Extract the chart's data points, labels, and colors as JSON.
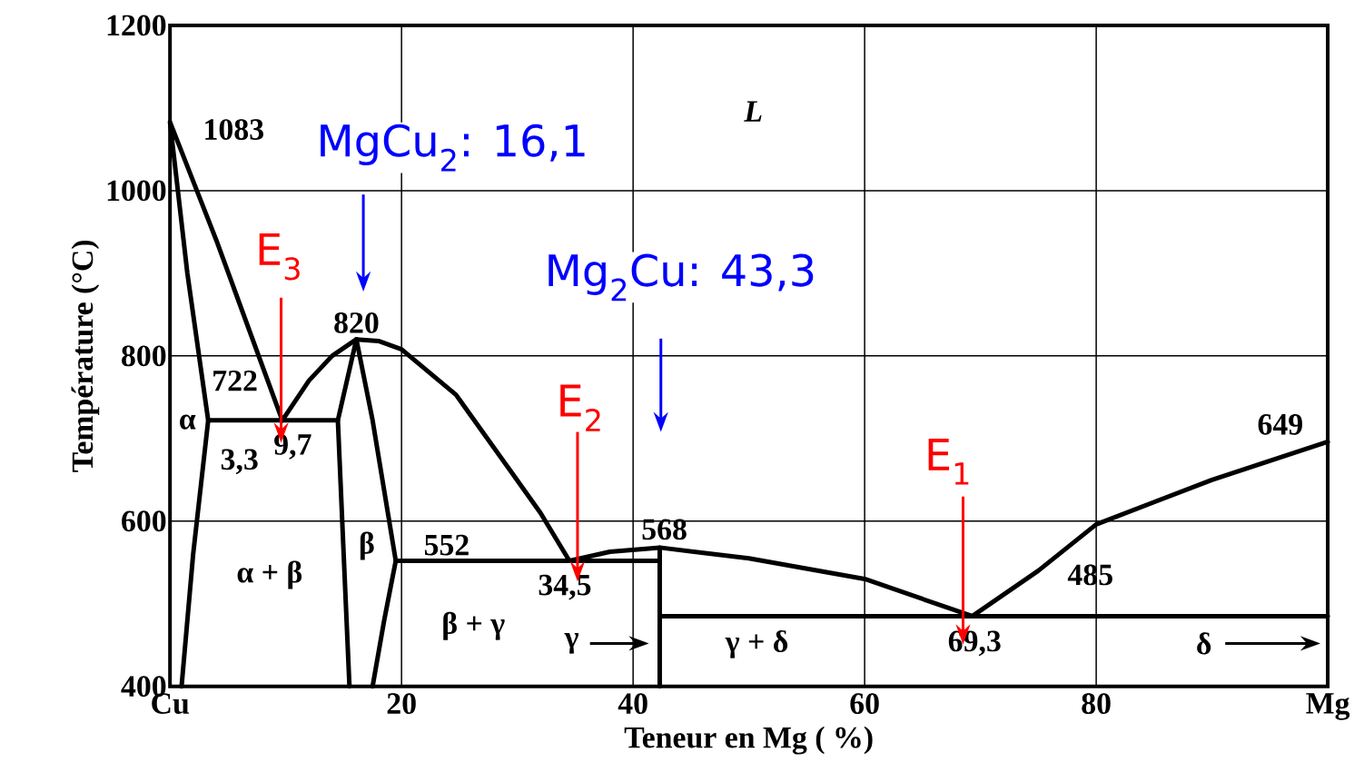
{
  "chart_data": {
    "type": "line",
    "xlabel": "Teneur en Mg ( %)",
    "ylabel": "Température (°C)",
    "xlim": [
      0,
      100
    ],
    "ylim": [
      400,
      1200
    ],
    "xticks": [
      {
        "value": 0,
        "label": "Cu"
      },
      20,
      40,
      60,
      80,
      {
        "value": 100,
        "label": "Mg"
      }
    ],
    "yticks": [
      400,
      600,
      800,
      1000,
      1200
    ],
    "grid": true,
    "marker": "none",
    "line_style": "solid",
    "series": [
      {
        "color": "#000000",
        "x": [
          9.7,
          4,
          0,
          1.5,
          3.3,
          2,
          1
        ],
        "values": [
          722,
          940,
          1083,
          900,
          722,
          560,
          400
        ]
      },
      {
        "color": "#000000",
        "x": [
          9.7,
          12,
          14,
          16.1,
          18,
          20,
          24.7,
          29.4,
          32,
          34.5
        ],
        "values": [
          722,
          770,
          800,
          820,
          818,
          808,
          753,
          661,
          610,
          552
        ]
      },
      {
        "color": "#000000",
        "x": [
          34.5,
          38,
          42.3,
          50,
          60,
          69.3
        ],
        "values": [
          552,
          563,
          568,
          555,
          530,
          485
        ]
      },
      {
        "color": "#000000",
        "x": [
          69.3,
          75,
          80,
          90,
          100
        ],
        "values": [
          485,
          540,
          596,
          650,
          696
        ]
      },
      {
        "color": "#000000",
        "x": [
          3.3,
          14.5
        ],
        "values": [
          722,
          722
        ]
      },
      {
        "color": "#000000",
        "x": [
          16.1,
          14.5,
          15,
          15.5
        ],
        "values": [
          820,
          722,
          560,
          400
        ]
      },
      {
        "color": "#000000",
        "x": [
          16.1,
          17.5,
          19.5,
          18.5,
          17.5
        ],
        "values": [
          820,
          722,
          552,
          480,
          400
        ]
      },
      {
        "color": "#000000",
        "x": [
          19.5,
          42.3
        ],
        "values": [
          552,
          552
        ]
      },
      {
        "color": "#000000",
        "x": [
          42.3,
          42.3
        ],
        "values": [
          568,
          400
        ]
      },
      {
        "color": "#000000",
        "x": [
          42.3,
          100
        ],
        "values": [
          485,
          485
        ]
      }
    ],
    "annotations": [
      "1083",
      "L",
      "MgCu$_{2}$: 16,1",
      "E$_{3}$",
      "820",
      "Mg$_{2}$Cu: 43,3",
      "722",
      "α",
      "3,3",
      "9,7",
      "E$_{2}$",
      "649",
      "E$_{1}$",
      "568",
      "β",
      "552",
      "34,5",
      "α + β",
      "485",
      "β + γ",
      "γ",
      "γ + δ",
      "69,3",
      "δ"
    ]
  }
}
